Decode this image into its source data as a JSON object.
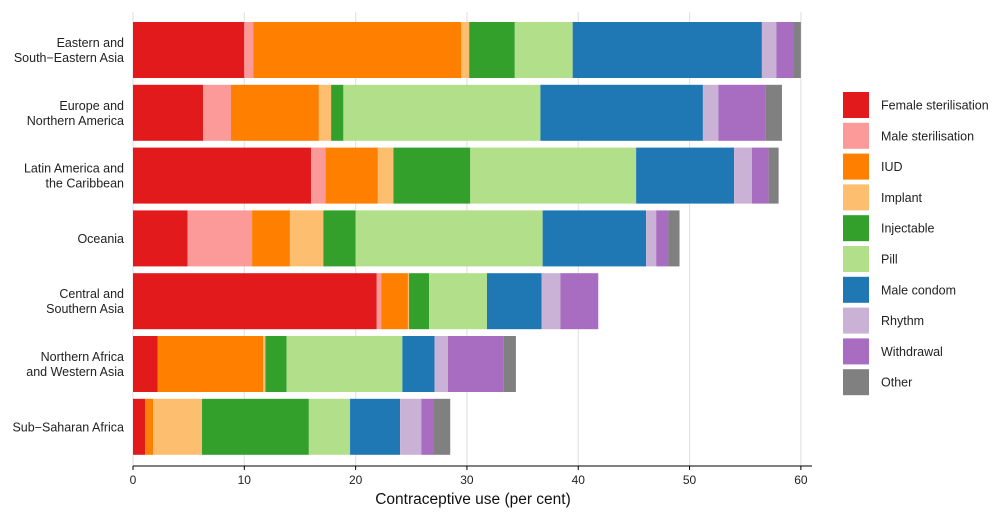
{
  "chart_data": {
    "type": "bar",
    "orientation": "horizontal",
    "stacked": true,
    "xlabel": "Contraceptive use (per cent)",
    "xlim": [
      0,
      61
    ],
    "xticks": [
      0,
      10,
      20,
      30,
      40,
      50,
      60
    ],
    "grid": "vertical",
    "legend_position": "right",
    "categories": [
      [
        "Eastern and",
        "South−Eastern Asia"
      ],
      [
        "Europe and",
        "Northern America"
      ],
      [
        "Latin America and",
        "the Caribbean"
      ],
      [
        "Oceania"
      ],
      [
        "Central and",
        "Southern Asia"
      ],
      [
        "Northern Africa",
        "and Western Asia"
      ],
      [
        "Sub−Saharan Africa"
      ]
    ],
    "series": [
      {
        "name": "Female sterilisation",
        "color": "#e31a1c",
        "values": [
          10.0,
          6.3,
          16.0,
          4.9,
          21.9,
          2.2,
          1.1
        ]
      },
      {
        "name": "Male sterilisation",
        "color": "#fb9a99",
        "values": [
          0.8,
          2.5,
          1.3,
          5.8,
          0.4,
          0.0,
          0.0
        ]
      },
      {
        "name": "IUD",
        "color": "#ff7f00",
        "values": [
          18.7,
          7.9,
          4.7,
          3.4,
          2.4,
          9.5,
          0.7
        ]
      },
      {
        "name": "Implant",
        "color": "#fdbf6f",
        "values": [
          0.7,
          1.1,
          1.4,
          3.0,
          0.1,
          0.2,
          4.4
        ]
      },
      {
        "name": "Injectable",
        "color": "#33a02c",
        "values": [
          4.1,
          1.1,
          6.9,
          2.9,
          1.8,
          1.9,
          9.6
        ]
      },
      {
        "name": "Pill",
        "color": "#b2df8a",
        "values": [
          5.2,
          17.7,
          14.9,
          16.8,
          5.2,
          10.4,
          3.7
        ]
      },
      {
        "name": "Male condom",
        "color": "#1f78b4",
        "values": [
          17.0,
          14.6,
          8.8,
          9.3,
          4.9,
          2.9,
          4.5
        ]
      },
      {
        "name": "Rhythm",
        "color": "#cab2d6",
        "values": [
          1.3,
          1.4,
          1.6,
          0.9,
          1.7,
          1.2,
          1.9
        ]
      },
      {
        "name": "Withdrawal",
        "color": "#a86cc1",
        "values": [
          1.5,
          4.2,
          1.5,
          1.1,
          3.4,
          5.0,
          1.1
        ]
      },
      {
        "name": "Other",
        "color": "#808080",
        "values": [
          0.7,
          1.5,
          0.9,
          1.0,
          0.0,
          1.1,
          1.5
        ]
      }
    ]
  }
}
